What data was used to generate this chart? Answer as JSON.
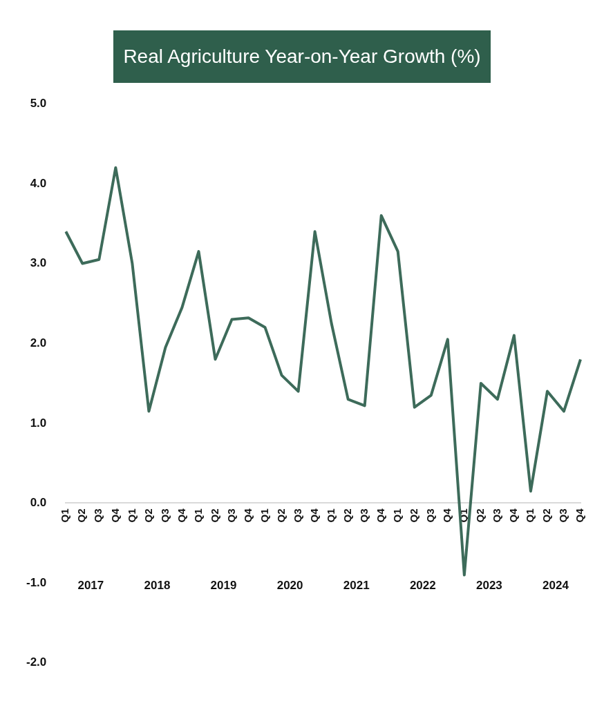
{
  "chart_data": {
    "type": "line",
    "title": "Real Agriculture Year-on-Year Growth (%)",
    "categories": [
      "Q1",
      "Q2",
      "Q3",
      "Q4",
      "Q1",
      "Q2",
      "Q3",
      "Q4",
      "Q1",
      "Q2",
      "Q3",
      "Q4",
      "Q1",
      "Q2",
      "Q3",
      "Q4",
      "Q1",
      "Q2",
      "Q3",
      "Q4",
      "Q1",
      "Q2",
      "Q3",
      "Q4",
      "Q1",
      "Q2",
      "Q3",
      "Q4",
      "Q1",
      "Q2",
      "Q3",
      "Q4"
    ],
    "series": [
      {
        "color": "#3d6b5a",
        "values": [
          3.4,
          3.0,
          3.05,
          4.2,
          3.0,
          1.15,
          1.95,
          2.45,
          3.15,
          1.8,
          2.3,
          2.32,
          2.2,
          1.6,
          1.4,
          3.4,
          2.25,
          1.3,
          1.22,
          3.6,
          3.15,
          1.2,
          1.35,
          2.05,
          -0.9,
          1.5,
          1.3,
          2.1,
          0.15,
          1.4,
          1.15,
          1.8
        ]
      }
    ],
    "annotations": [
      "2017",
      "2018",
      "2019",
      "2020",
      "2021",
      "2022",
      "2023",
      "2024"
    ],
    "ylim": [
      -2,
      5
    ],
    "yticks": [
      {
        "value": -2,
        "label": "-2.0"
      },
      {
        "value": -1,
        "label": "-1.0"
      },
      {
        "value": 0,
        "label": "0.0"
      },
      {
        "value": 1,
        "label": "1.0"
      },
      {
        "value": 2,
        "label": "2.0"
      },
      {
        "value": 3,
        "label": "3.0"
      },
      {
        "value": 4,
        "label": "4.0"
      },
      {
        "value": 5,
        "label": "5.0"
      }
    ],
    "grid": false,
    "legend": false,
    "marker": "none",
    "line_style": "solid"
  }
}
